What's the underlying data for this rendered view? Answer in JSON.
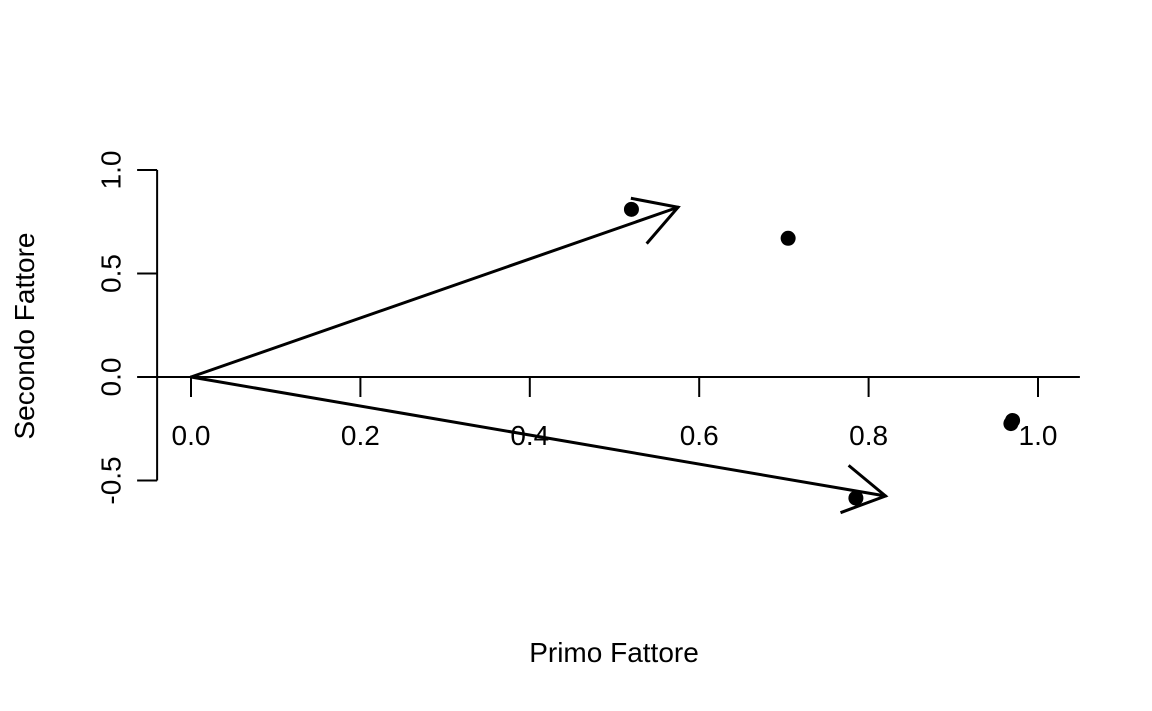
{
  "chart_data": {
    "type": "scatter",
    "title": "",
    "xlabel": "Primo Fattore",
    "ylabel": "Secondo Fattore",
    "xlim": [
      -0.04,
      1.04
    ],
    "ylim": [
      -0.5,
      1.0
    ],
    "x_ticks": [
      0.0,
      0.2,
      0.4,
      0.6,
      0.8,
      1.0
    ],
    "x_tick_labels": [
      "0.0",
      "0.2",
      "0.4",
      "0.6",
      "0.8",
      "1.0"
    ],
    "y_ticks": [
      -0.5,
      0.0,
      0.5,
      1.0
    ],
    "y_tick_labels": [
      "-0.5",
      "0.0",
      "0.5",
      "1.0"
    ],
    "grid": false,
    "reference_line_y": 0.0,
    "points": [
      {
        "x": 0.52,
        "y": 0.81
      },
      {
        "x": 0.705,
        "y": 0.67
      },
      {
        "x": 0.785,
        "y": -0.585
      },
      {
        "x": 0.97,
        "y": -0.21
      },
      {
        "x": 0.968,
        "y": -0.225
      }
    ],
    "arrows": [
      {
        "from": [
          0.0,
          0.0
        ],
        "to": [
          0.575,
          0.82
        ]
      },
      {
        "from": [
          0.0,
          0.0
        ],
        "to": [
          0.82,
          -0.575
        ]
      }
    ],
    "colors": {
      "ink": "#000000"
    }
  }
}
